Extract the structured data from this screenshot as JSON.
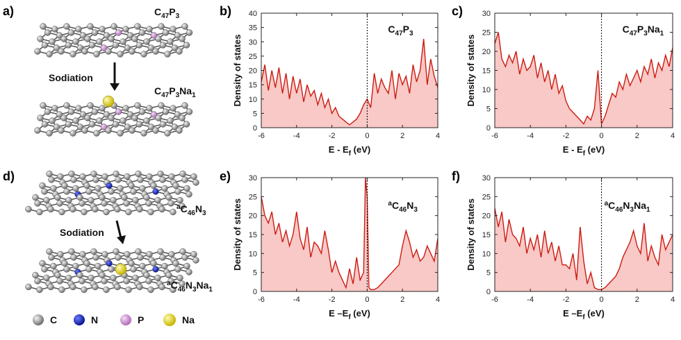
{
  "panel_labels": [
    "a)",
    "b)",
    "c)",
    "d)",
    "e)",
    "f)"
  ],
  "mol": {
    "top_formula_1": {
      "base": "C",
      "sub": "47",
      "base2": "P",
      "sub2": "3"
    },
    "top_formula_2": {
      "base": "C",
      "sub": "47",
      "base2": "P",
      "sub2": "3",
      "base3": "Na",
      "sub3": "1"
    },
    "top_arrow_label": "Sodiation",
    "bot_formula_1": {
      "sup": "a",
      "base": "C",
      "sub": "46",
      "base2": "N",
      "sub2": "3"
    },
    "bot_formula_2": {
      "sup": "a",
      "base": "C",
      "sub": "46",
      "base2": "N",
      "sub2": "3",
      "base3": "Na",
      "sub3": "1"
    },
    "bot_arrow_label": "Sodiation"
  },
  "legend": [
    {
      "label": "C",
      "color": "#9a9a9a"
    },
    {
      "label": "N",
      "color": "#1a2fc8"
    },
    {
      "label": "P",
      "color": "#d59ad8"
    },
    {
      "label": "Na",
      "color": "#e8d81a"
    }
  ],
  "colors": {
    "line": "#cc1a10",
    "fill": "#f8c9c6",
    "fermi": "#000000"
  },
  "chart_data": [
    {
      "panel": "b)",
      "type": "area",
      "ylabel": "Density of states",
      "annotation": {
        "base": "C",
        "sub": "47",
        "base2": "P",
        "sub2": "3"
      },
      "xlim": [
        -6,
        4
      ],
      "ylim": [
        0,
        40
      ],
      "xticks": [
        -6,
        -4,
        -2,
        0,
        2,
        4
      ],
      "yticks": [
        0,
        5,
        10,
        15,
        20,
        25,
        30,
        35,
        40
      ],
      "xlabel": {
        "main": "E - E",
        "sub": "f",
        "tail": " (eV)"
      },
      "fermi_level": 0,
      "x": [
        -6,
        -5.8,
        -5.6,
        -5.4,
        -5.2,
        -5,
        -4.8,
        -4.6,
        -4.4,
        -4.2,
        -4,
        -3.8,
        -3.6,
        -3.4,
        -3.2,
        -3,
        -2.8,
        -2.6,
        -2.4,
        -2.2,
        -2,
        -1.8,
        -1.6,
        -1.4,
        -1.2,
        -1,
        -0.8,
        -0.6,
        -0.4,
        -0.2,
        0,
        0.2,
        0.4,
        0.6,
        0.8,
        1,
        1.2,
        1.4,
        1.6,
        1.8,
        2,
        2.2,
        2.4,
        2.6,
        2.8,
        3,
        3.2,
        3.4,
        3.6,
        3.8,
        4
      ],
      "y": [
        16,
        22,
        13,
        20,
        14,
        21,
        12,
        19,
        10,
        18,
        12,
        17,
        9,
        15,
        11,
        13,
        8,
        12,
        7,
        10,
        5,
        7,
        4,
        3,
        2,
        1,
        2,
        3,
        5,
        8,
        10,
        7,
        19,
        12,
        17,
        14,
        12,
        20,
        10,
        19,
        15,
        18,
        12,
        22,
        16,
        20,
        31,
        15,
        24,
        18,
        14
      ]
    },
    {
      "panel": "c)",
      "type": "area",
      "ylabel": "Density of states",
      "annotation": {
        "base": "C",
        "sub": "47",
        "base2": "P",
        "sub2": "3",
        "base3": "Na",
        "sub3": "1"
      },
      "xlim": [
        -6,
        4
      ],
      "ylim": [
        0,
        30
      ],
      "xticks": [
        -6,
        -4,
        -2,
        0,
        2,
        4
      ],
      "yticks": [
        0,
        5,
        10,
        15,
        20,
        25,
        30
      ],
      "xlabel": {
        "main": "E - E",
        "sub": "f",
        "tail": " (eV)"
      },
      "fermi_level": 0,
      "x": [
        -6,
        -5.8,
        -5.6,
        -5.4,
        -5.2,
        -5,
        -4.8,
        -4.6,
        -4.4,
        -4.2,
        -4,
        -3.8,
        -3.6,
        -3.4,
        -3.2,
        -3,
        -2.8,
        -2.6,
        -2.4,
        -2.2,
        -2,
        -1.8,
        -1.6,
        -1.4,
        -1.2,
        -1,
        -0.8,
        -0.6,
        -0.4,
        -0.2,
        0,
        0.2,
        0.4,
        0.6,
        0.8,
        1,
        1.2,
        1.4,
        1.6,
        1.8,
        2,
        2.2,
        2.4,
        2.6,
        2.8,
        3,
        3.2,
        3.4,
        3.6,
        3.8,
        4
      ],
      "y": [
        22,
        25,
        18,
        16,
        19,
        17,
        20,
        14,
        18,
        15,
        16,
        19,
        13,
        17,
        12,
        15,
        10,
        14,
        9,
        11,
        7,
        5,
        4,
        3,
        2,
        1,
        3,
        2,
        5,
        15,
        1,
        3,
        6,
        9,
        8,
        12,
        10,
        14,
        11,
        13,
        15,
        12,
        16,
        14,
        18,
        13,
        17,
        15,
        19,
        16,
        21
      ]
    },
    {
      "panel": "e)",
      "type": "area",
      "ylabel": "Density of states",
      "annotation": {
        "sup": "a",
        "base": "C",
        "sub": "46",
        "base2": "N",
        "sub2": "3"
      },
      "xlim": [
        -6,
        4
      ],
      "ylim": [
        0,
        30
      ],
      "xticks": [
        -6,
        -4,
        -2,
        0,
        2,
        4
      ],
      "yticks": [
        0,
        5,
        10,
        15,
        20,
        25,
        30
      ],
      "xlabel": {
        "main": "E –E",
        "sub": "f",
        "tail": " (eV)"
      },
      "fermi_level": 0,
      "x": [
        -6,
        -5.8,
        -5.6,
        -5.4,
        -5.2,
        -5,
        -4.8,
        -4.6,
        -4.4,
        -4.2,
        -4,
        -3.8,
        -3.6,
        -3.4,
        -3.2,
        -3,
        -2.8,
        -2.6,
        -2.4,
        -2.2,
        -2,
        -1.8,
        -1.6,
        -1.4,
        -1.2,
        -1,
        -0.8,
        -0.6,
        -0.4,
        -0.2,
        -0.1,
        0,
        0.1,
        0.2,
        0.4,
        0.6,
        0.8,
        1,
        1.2,
        1.4,
        1.6,
        1.8,
        2,
        2.2,
        2.4,
        2.6,
        2.8,
        3,
        3.2,
        3.4,
        3.6,
        3.8,
        4
      ],
      "y": [
        25,
        20,
        18,
        21,
        15,
        18,
        13,
        16,
        12,
        15,
        21,
        14,
        11,
        17,
        9,
        13,
        12,
        10,
        16,
        11,
        5,
        8,
        5,
        3,
        1,
        6,
        2,
        9,
        3,
        5,
        30,
        25,
        1,
        0.5,
        0.5,
        1,
        2,
        3,
        4,
        5,
        6,
        7,
        12,
        16,
        13,
        9,
        11,
        8,
        9,
        12,
        10,
        8,
        14
      ]
    },
    {
      "panel": "f)",
      "type": "area",
      "ylabel": "Density of states",
      "annotation": {
        "sup": "a",
        "base": "C",
        "sub": "46",
        "base2": "N",
        "sub2": "3",
        "base3": "Na",
        "sub3": "1"
      },
      "xlim": [
        -6,
        4
      ],
      "ylim": [
        0,
        30
      ],
      "xticks": [
        -6,
        -4,
        -2,
        0,
        2,
        4
      ],
      "yticks": [
        0,
        5,
        10,
        15,
        20,
        25,
        30
      ],
      "xlabel": {
        "main": "E –E",
        "sub": "f",
        "tail": " (eV)"
      },
      "fermi_level": 0,
      "x": [
        -6,
        -5.8,
        -5.6,
        -5.4,
        -5.2,
        -5,
        -4.8,
        -4.6,
        -4.4,
        -4.2,
        -4,
        -3.8,
        -3.6,
        -3.4,
        -3.2,
        -3,
        -2.8,
        -2.6,
        -2.4,
        -2.2,
        -2,
        -1.8,
        -1.6,
        -1.4,
        -1.2,
        -1,
        -0.8,
        -0.6,
        -0.4,
        -0.2,
        0,
        0.2,
        0.4,
        0.6,
        0.8,
        1,
        1.2,
        1.4,
        1.6,
        1.8,
        2,
        2.2,
        2.4,
        2.6,
        2.8,
        3,
        3.2,
        3.4,
        3.6,
        3.8,
        4
      ],
      "y": [
        22,
        17,
        21,
        13,
        19,
        15,
        14,
        12,
        17,
        10,
        14,
        11,
        15,
        9,
        16,
        10,
        13,
        8,
        12,
        7,
        7,
        6,
        10,
        3,
        17,
        8,
        2,
        5,
        1,
        0.5,
        0.5,
        1,
        2,
        3,
        4,
        6,
        9,
        11,
        13,
        16,
        12,
        10,
        18,
        8,
        12,
        9,
        7,
        15,
        11,
        13,
        15
      ]
    }
  ]
}
